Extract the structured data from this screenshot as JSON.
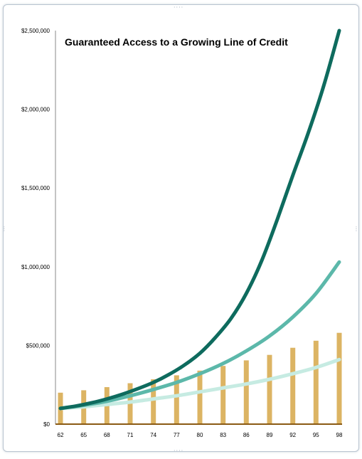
{
  "chart_data": {
    "type": "bar+line",
    "title": "Guaranteed Access to a Growing Line of Credit",
    "xlabel": "",
    "ylabel": "",
    "ylim": [
      0,
      2500000
    ],
    "grid": false,
    "legend": "none",
    "y_ticks": [
      "$0",
      "$500,000",
      "$1,000,000",
      "$1,500,000",
      "$2,000,000",
      "$2,500,000"
    ],
    "y_tick_values": [
      0,
      500000,
      1000000,
      1500000,
      2000000,
      2500000
    ],
    "x_ticks": [
      "62",
      "65",
      "68",
      "71",
      "74",
      "77",
      "80",
      "83",
      "86",
      "89",
      "92",
      "95",
      "98"
    ],
    "x": [
      62,
      65,
      68,
      71,
      74,
      77,
      80,
      83,
      86,
      89,
      92,
      95,
      98
    ],
    "bars": {
      "color": "#dcb463",
      "values": [
        200000,
        215000,
        235000,
        260000,
        285000,
        310000,
        340000,
        370000,
        405000,
        440000,
        485000,
        530000,
        580000
      ]
    },
    "series": [
      {
        "color": "#0e6b5e",
        "width": 5,
        "x": [
          62,
          64,
          66,
          68,
          70,
          72,
          74,
          76,
          78,
          80,
          82,
          84,
          86,
          88,
          90,
          92,
          94,
          96,
          98
        ],
        "values": [
          100000,
          115000,
          135000,
          160000,
          190000,
          225000,
          265000,
          315000,
          375000,
          450000,
          550000,
          670000,
          830000,
          1040000,
          1300000,
          1580000,
          1850000,
          2150000,
          2500000
        ]
      },
      {
        "color": "#5cb8aa",
        "width": 5,
        "x": [
          62,
          65,
          68,
          71,
          74,
          77,
          80,
          83,
          86,
          89,
          92,
          95,
          98
        ],
        "values": [
          100000,
          120000,
          145000,
          180000,
          220000,
          265000,
          320000,
          385000,
          465000,
          560000,
          680000,
          830000,
          1030000
        ]
      },
      {
        "color": "#c6ebe2",
        "width": 5,
        "x": [
          62,
          65,
          68,
          71,
          74,
          77,
          80,
          83,
          86,
          89,
          92,
          95,
          98
        ],
        "values": [
          100000,
          110000,
          125000,
          140000,
          160000,
          180000,
          205000,
          230000,
          255000,
          285000,
          320000,
          360000,
          410000
        ]
      }
    ]
  }
}
